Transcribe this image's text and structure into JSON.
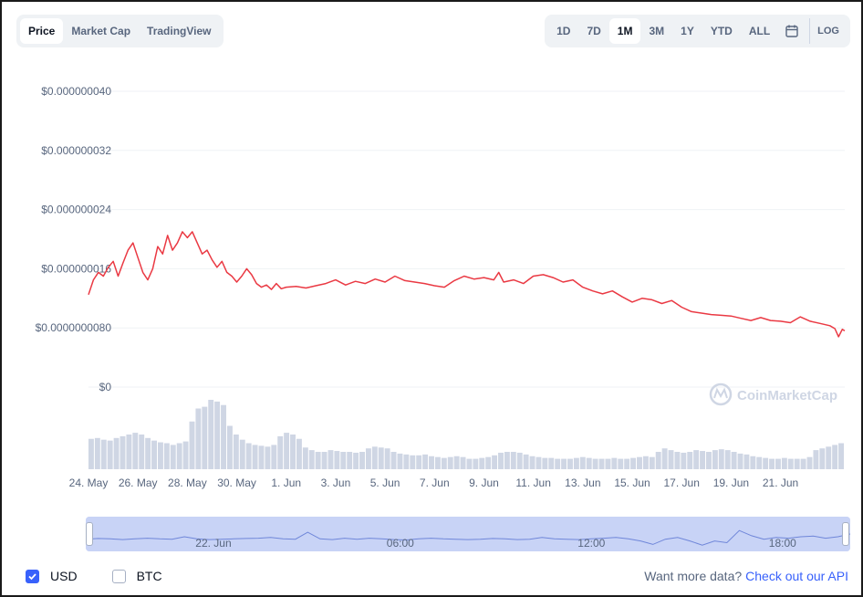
{
  "tabs": [
    {
      "label": "Price",
      "active": true
    },
    {
      "label": "Market Cap",
      "active": false
    },
    {
      "label": "TradingView",
      "active": false
    }
  ],
  "ranges": [
    {
      "label": "1D",
      "active": false
    },
    {
      "label": "7D",
      "active": false
    },
    {
      "label": "1M",
      "active": true
    },
    {
      "label": "3M",
      "active": false
    },
    {
      "label": "1Y",
      "active": false
    },
    {
      "label": "YTD",
      "active": false
    },
    {
      "label": "ALL",
      "active": false
    }
  ],
  "calendar_icon": "calendar-icon",
  "log_label": "LOG",
  "watermark": "CoinMarketCap",
  "colors": {
    "line": "#ea3943",
    "volume": "#cfd6e4",
    "accent": "#3861fb",
    "navigator": "#c8d3f6"
  },
  "chart_data": {
    "type": "line",
    "y_ticks": [
      {
        "value": 0,
        "label": "$0"
      },
      {
        "value": 8e-09,
        "label": "$0.0000000080"
      },
      {
        "value": 1.6e-08,
        "label": "$0.000000016"
      },
      {
        "value": 2.4e-08,
        "label": "$0.000000024"
      },
      {
        "value": 3.2e-08,
        "label": "$0.000000032"
      },
      {
        "value": 4e-08,
        "label": "$0.000000040"
      }
    ],
    "ylim": [
      0,
      4e-08
    ],
    "x_ticks": [
      "24. May",
      "26. May",
      "28. May",
      "30. May",
      "1. Jun",
      "3. Jun",
      "5. Jun",
      "7. Jun",
      "9. Jun",
      "11. Jun",
      "13. Jun",
      "15. Jun",
      "17. Jun",
      "19. Jun",
      "21. Jun"
    ],
    "xlim": [
      0,
      30.6
    ],
    "grid": true,
    "series": [
      {
        "values": [
          [
            0.0,
            1.25e-08
          ],
          [
            0.2,
            1.45e-08
          ],
          [
            0.4,
            1.55e-08
          ],
          [
            0.6,
            1.5e-08
          ],
          [
            0.8,
            1.62e-08
          ],
          [
            1.0,
            1.7e-08
          ],
          [
            1.2,
            1.5e-08
          ],
          [
            1.4,
            1.68e-08
          ],
          [
            1.6,
            1.85e-08
          ],
          [
            1.8,
            1.95e-08
          ],
          [
            2.0,
            1.75e-08
          ],
          [
            2.2,
            1.55e-08
          ],
          [
            2.4,
            1.45e-08
          ],
          [
            2.6,
            1.6e-08
          ],
          [
            2.8,
            1.9e-08
          ],
          [
            3.0,
            1.8e-08
          ],
          [
            3.2,
            2.05e-08
          ],
          [
            3.4,
            1.85e-08
          ],
          [
            3.6,
            1.95e-08
          ],
          [
            3.8,
            2.1e-08
          ],
          [
            4.0,
            2.02e-08
          ],
          [
            4.2,
            2.1e-08
          ],
          [
            4.4,
            1.95e-08
          ],
          [
            4.6,
            1.8e-08
          ],
          [
            4.8,
            1.85e-08
          ],
          [
            5.0,
            1.72e-08
          ],
          [
            5.2,
            1.62e-08
          ],
          [
            5.4,
            1.7e-08
          ],
          [
            5.6,
            1.55e-08
          ],
          [
            5.8,
            1.5e-08
          ],
          [
            6.0,
            1.42e-08
          ],
          [
            6.2,
            1.5e-08
          ],
          [
            6.4,
            1.6e-08
          ],
          [
            6.6,
            1.52e-08
          ],
          [
            6.8,
            1.4e-08
          ],
          [
            7.0,
            1.35e-08
          ],
          [
            7.2,
            1.38e-08
          ],
          [
            7.4,
            1.32e-08
          ],
          [
            7.6,
            1.4e-08
          ],
          [
            7.8,
            1.33e-08
          ],
          [
            8.0,
            1.35e-08
          ],
          [
            8.4,
            1.36e-08
          ],
          [
            8.8,
            1.34e-08
          ],
          [
            9.2,
            1.37e-08
          ],
          [
            9.6,
            1.4e-08
          ],
          [
            10.0,
            1.45e-08
          ],
          [
            10.4,
            1.38e-08
          ],
          [
            10.8,
            1.43e-08
          ],
          [
            11.2,
            1.4e-08
          ],
          [
            11.6,
            1.46e-08
          ],
          [
            12.0,
            1.42e-08
          ],
          [
            12.4,
            1.5e-08
          ],
          [
            12.8,
            1.44e-08
          ],
          [
            13.2,
            1.42e-08
          ],
          [
            13.6,
            1.4e-08
          ],
          [
            14.0,
            1.37e-08
          ],
          [
            14.4,
            1.35e-08
          ],
          [
            14.8,
            1.44e-08
          ],
          [
            15.2,
            1.5e-08
          ],
          [
            15.6,
            1.46e-08
          ],
          [
            16.0,
            1.48e-08
          ],
          [
            16.4,
            1.45e-08
          ],
          [
            16.6,
            1.55e-08
          ],
          [
            16.8,
            1.42e-08
          ],
          [
            17.2,
            1.45e-08
          ],
          [
            17.6,
            1.4e-08
          ],
          [
            18.0,
            1.5e-08
          ],
          [
            18.4,
            1.52e-08
          ],
          [
            18.8,
            1.48e-08
          ],
          [
            19.2,
            1.42e-08
          ],
          [
            19.6,
            1.45e-08
          ],
          [
            20.0,
            1.35e-08
          ],
          [
            20.4,
            1.3e-08
          ],
          [
            20.8,
            1.26e-08
          ],
          [
            21.2,
            1.3e-08
          ],
          [
            21.6,
            1.22e-08
          ],
          [
            22.0,
            1.15e-08
          ],
          [
            22.4,
            1.2e-08
          ],
          [
            22.8,
            1.18e-08
          ],
          [
            23.2,
            1.13e-08
          ],
          [
            23.6,
            1.17e-08
          ],
          [
            24.0,
            1.08e-08
          ],
          [
            24.4,
            1.02e-08
          ],
          [
            24.8,
            1e-08
          ],
          [
            25.2,
            9.8e-09
          ],
          [
            25.6,
            9.7e-09
          ],
          [
            26.0,
            9.6e-09
          ],
          [
            26.4,
            9.3e-09
          ],
          [
            26.8,
            9e-09
          ],
          [
            27.2,
            9.4e-09
          ],
          [
            27.6,
            9e-09
          ],
          [
            28.0,
            8.9e-09
          ],
          [
            28.4,
            8.7e-09
          ],
          [
            28.8,
            9.5e-09
          ],
          [
            29.2,
            8.9e-09
          ],
          [
            29.6,
            8.6e-09
          ],
          [
            30.0,
            8.3e-09
          ],
          [
            30.2,
            7.9e-09
          ],
          [
            30.35,
            6.8e-09
          ],
          [
            30.5,
            7.8e-09
          ],
          [
            30.6,
            7.6e-09
          ]
        ]
      }
    ],
    "volume": [
      0.35,
      0.36,
      0.34,
      0.33,
      0.36,
      0.38,
      0.4,
      0.42,
      0.4,
      0.36,
      0.33,
      0.31,
      0.3,
      0.28,
      0.3,
      0.32,
      0.55,
      0.7,
      0.72,
      0.8,
      0.78,
      0.74,
      0.5,
      0.4,
      0.34,
      0.3,
      0.28,
      0.27,
      0.26,
      0.28,
      0.38,
      0.42,
      0.4,
      0.35,
      0.25,
      0.22,
      0.2,
      0.2,
      0.22,
      0.21,
      0.2,
      0.2,
      0.19,
      0.2,
      0.24,
      0.26,
      0.25,
      0.24,
      0.2,
      0.18,
      0.17,
      0.16,
      0.16,
      0.17,
      0.15,
      0.14,
      0.13,
      0.14,
      0.15,
      0.14,
      0.12,
      0.12,
      0.13,
      0.14,
      0.16,
      0.19,
      0.2,
      0.2,
      0.19,
      0.17,
      0.15,
      0.14,
      0.13,
      0.13,
      0.12,
      0.12,
      0.12,
      0.13,
      0.14,
      0.13,
      0.12,
      0.12,
      0.12,
      0.13,
      0.12,
      0.12,
      0.13,
      0.14,
      0.15,
      0.14,
      0.2,
      0.24,
      0.22,
      0.2,
      0.19,
      0.2,
      0.22,
      0.21,
      0.2,
      0.22,
      0.23,
      0.22,
      0.2,
      0.18,
      0.17,
      0.15,
      0.14,
      0.13,
      0.12,
      0.12,
      0.13,
      0.12,
      0.12,
      0.12,
      0.14,
      0.22,
      0.24,
      0.26,
      0.28,
      0.3
    ]
  },
  "navigator": {
    "labels": [
      {
        "text": "22. Jun",
        "frac": 0.165
      },
      {
        "text": "06:00",
        "frac": 0.415
      },
      {
        "text": "12:00",
        "frac": 0.665
      },
      {
        "text": "18:00",
        "frac": 0.915
      }
    ],
    "series": [
      0.35,
      0.37,
      0.36,
      0.34,
      0.36,
      0.38,
      0.36,
      0.35,
      0.42,
      0.36,
      0.34,
      0.35,
      0.36,
      0.37,
      0.38,
      0.4,
      0.36,
      0.35,
      0.55,
      0.36,
      0.34,
      0.38,
      0.35,
      0.38,
      0.36,
      0.34,
      0.33,
      0.36,
      0.38,
      0.36,
      0.35,
      0.34,
      0.35,
      0.37,
      0.36,
      0.34,
      0.35,
      0.4,
      0.36,
      0.35,
      0.34,
      0.36,
      0.38,
      0.4,
      0.36,
      0.3,
      0.2,
      0.35,
      0.4,
      0.3,
      0.18,
      0.3,
      0.25,
      0.6,
      0.45,
      0.35,
      0.4,
      0.38,
      0.42,
      0.44,
      0.38,
      0.42,
      0.5
    ]
  },
  "footer": {
    "usd_label": "USD",
    "btc_label": "BTC",
    "more_text": "Want more data?",
    "api_link": "Check out our API"
  }
}
